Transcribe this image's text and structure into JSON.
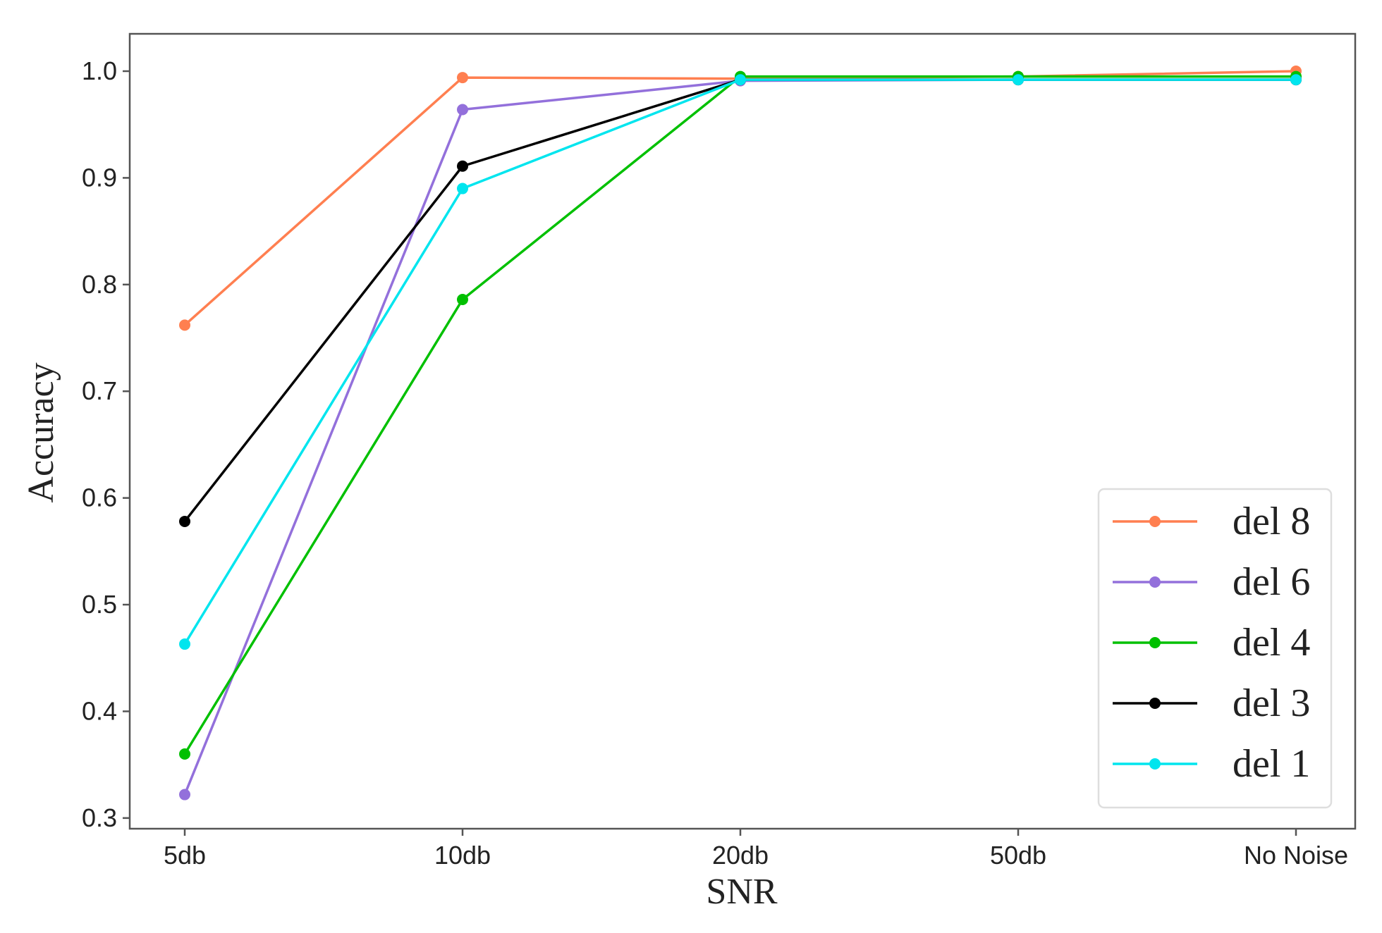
{
  "chart_data": {
    "type": "line",
    "title": "",
    "xlabel": "SNR",
    "ylabel": "Accuracy",
    "categories": [
      "5db",
      "10db",
      "20db",
      "50db",
      "No Noise"
    ],
    "ylim": [
      0.29,
      1.035
    ],
    "yticks": [
      0.3,
      0.4,
      0.5,
      0.6,
      0.7,
      0.8,
      0.9,
      1.0
    ],
    "ytick_labels": [
      "0.3",
      "0.4",
      "0.5",
      "0.6",
      "0.7",
      "0.8",
      "0.9",
      "1.0"
    ],
    "grid": false,
    "legend_position": "bottom-right",
    "series": [
      {
        "name": "del 8",
        "color": "#FF7F50",
        "values": [
          0.762,
          0.994,
          0.993,
          0.995,
          1.0
        ]
      },
      {
        "name": "del 6",
        "color": "#9370DB",
        "values": [
          0.322,
          0.964,
          0.991,
          0.992,
          0.992
        ]
      },
      {
        "name": "del 4",
        "color": "#00C000",
        "values": [
          0.36,
          0.786,
          0.995,
          0.995,
          0.995
        ]
      },
      {
        "name": "del 3",
        "color": "#000000",
        "values": [
          0.578,
          0.911,
          0.992,
          0.992,
          0.992
        ]
      },
      {
        "name": "del 1",
        "color": "#00E5EE",
        "values": [
          0.463,
          0.89,
          0.992,
          0.992,
          0.992
        ]
      }
    ]
  }
}
